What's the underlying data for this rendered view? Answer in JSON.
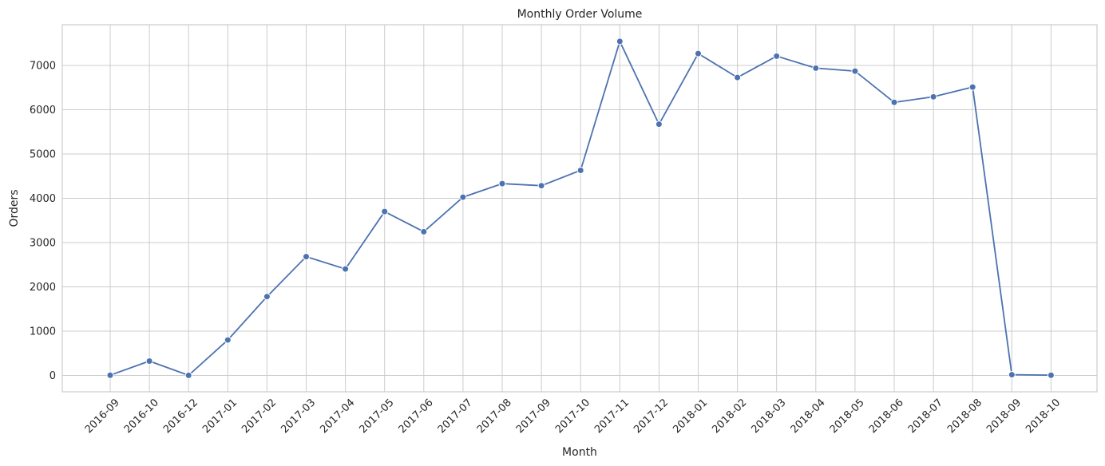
{
  "chart_data": {
    "type": "line",
    "title": "Monthly Order Volume",
    "xlabel": "Month",
    "ylabel": "Orders",
    "categories": [
      "2016-09",
      "2016-10",
      "2016-12",
      "2017-01",
      "2017-02",
      "2017-03",
      "2017-04",
      "2017-05",
      "2017-06",
      "2017-07",
      "2017-08",
      "2017-09",
      "2017-10",
      "2017-11",
      "2017-12",
      "2018-01",
      "2018-02",
      "2018-03",
      "2018-04",
      "2018-05",
      "2018-06",
      "2018-07",
      "2018-08",
      "2018-09",
      "2018-10"
    ],
    "series": [
      {
        "name": "Orders",
        "color": "#4c72b0",
        "values": [
          4,
          324,
          1,
          800,
          1780,
          2682,
          2404,
          3700,
          3245,
          4026,
          4331,
          4285,
          4631,
          7544,
          5673,
          7269,
          6728,
          7211,
          6939,
          6873,
          6167,
          6292,
          6512,
          16,
          4
        ]
      }
    ],
    "ylim": [
      -370,
      7920
    ],
    "yticks": [
      0,
      1000,
      2000,
      3000,
      4000,
      5000,
      6000,
      7000
    ],
    "grid": true
  }
}
